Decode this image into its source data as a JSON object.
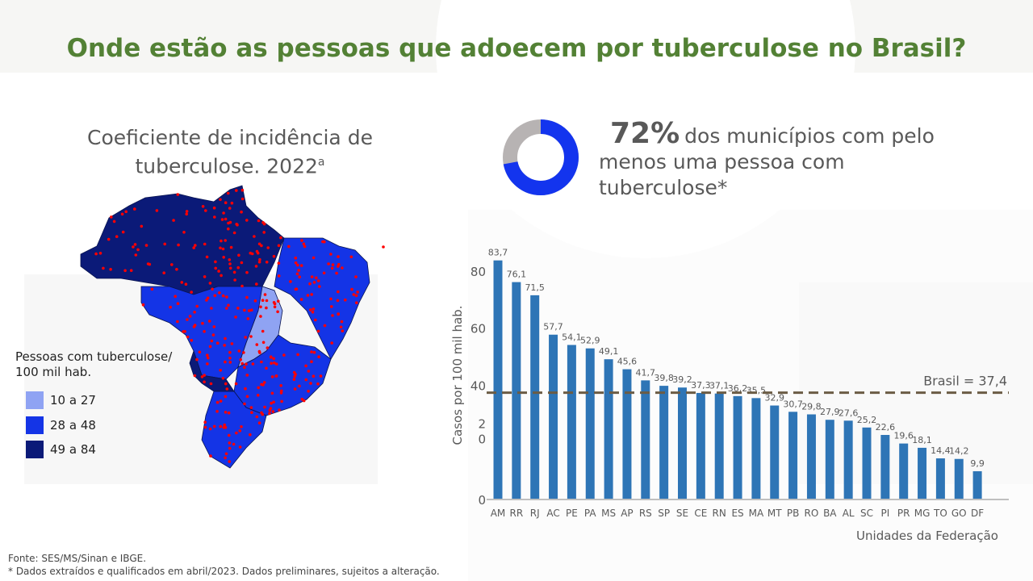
{
  "title": "Onde estão as pessoas que adoecem por tuberculose no Brasil?",
  "map": {
    "title": "Coeficiente de incidência de tuberculose. 2022",
    "title_sup": "a",
    "legend_title": "Pessoas com tuberculose/ 100 mil hab.",
    "legend": [
      {
        "label": "10 a 27",
        "color": "#8fa3f3"
      },
      {
        "label": "28 a 48",
        "color": "#1434e6"
      },
      {
        "label": "49 a 84",
        "color": "#0b1a78"
      }
    ],
    "dot_color": "#ff0000"
  },
  "donut": {
    "percent_label": "72%",
    "value": 72,
    "text": "dos municípios com pelo menos uma pessoa com tuberculose*",
    "colors": {
      "filled": "#1334ee",
      "rest": "#b7b3b3"
    }
  },
  "chart_data": {
    "type": "bar",
    "categories": [
      "AM",
      "RR",
      "RJ",
      "AC",
      "PE",
      "PA",
      "MS",
      "AP",
      "RS",
      "SP",
      "SE",
      "CE",
      "RN",
      "ES",
      "MA",
      "MT",
      "PB",
      "RO",
      "BA",
      "AL",
      "SC",
      "PI",
      "PR",
      "MG",
      "TO",
      "GO",
      "DF"
    ],
    "values": [
      83.7,
      76.1,
      71.5,
      57.7,
      54.1,
      52.9,
      49.1,
      45.6,
      41.7,
      39.8,
      39.2,
      37.3,
      37.1,
      36.2,
      35.5,
      32.9,
      30.7,
      29.8,
      27.9,
      27.6,
      25.2,
      22.6,
      19.6,
      18.1,
      14.4,
      14.2,
      9.9
    ],
    "data_labels": [
      "83,7",
      "76,1",
      "71,5",
      "57,7",
      "54,1",
      "52,9",
      "49,1",
      "45,6",
      "41,7",
      "39,8",
      "39,2",
      "37,3",
      "37,1",
      "36,2",
      "35,5",
      "32,9",
      "30,7",
      "29,8",
      "27,9",
      "27,6",
      "25,2",
      "22,6",
      "19,6",
      "18,1",
      "14,4",
      "14,2",
      "9,9"
    ],
    "yticks": [
      0,
      20,
      40,
      60,
      80
    ],
    "ytick_labels": [
      "0",
      "2\n0",
      "40",
      "60",
      "80"
    ],
    "ylim": [
      0,
      85
    ],
    "ylabel": "Casos por 100 mil hab.",
    "xlabel": "Unidades da Federação",
    "bar_color": "#2e75b6",
    "reference_line": {
      "value": 37.4,
      "label": "Brasil = 37,4",
      "color": "#6b5c45",
      "style": "dashed"
    },
    "grid": false
  },
  "footer": {
    "source": "Fonte: SES/MS/Sinan  e IBGE.",
    "note": "* Dados extraídos e qualificados em abril/2023. Dados preliminares, sujeitos a alteração."
  }
}
